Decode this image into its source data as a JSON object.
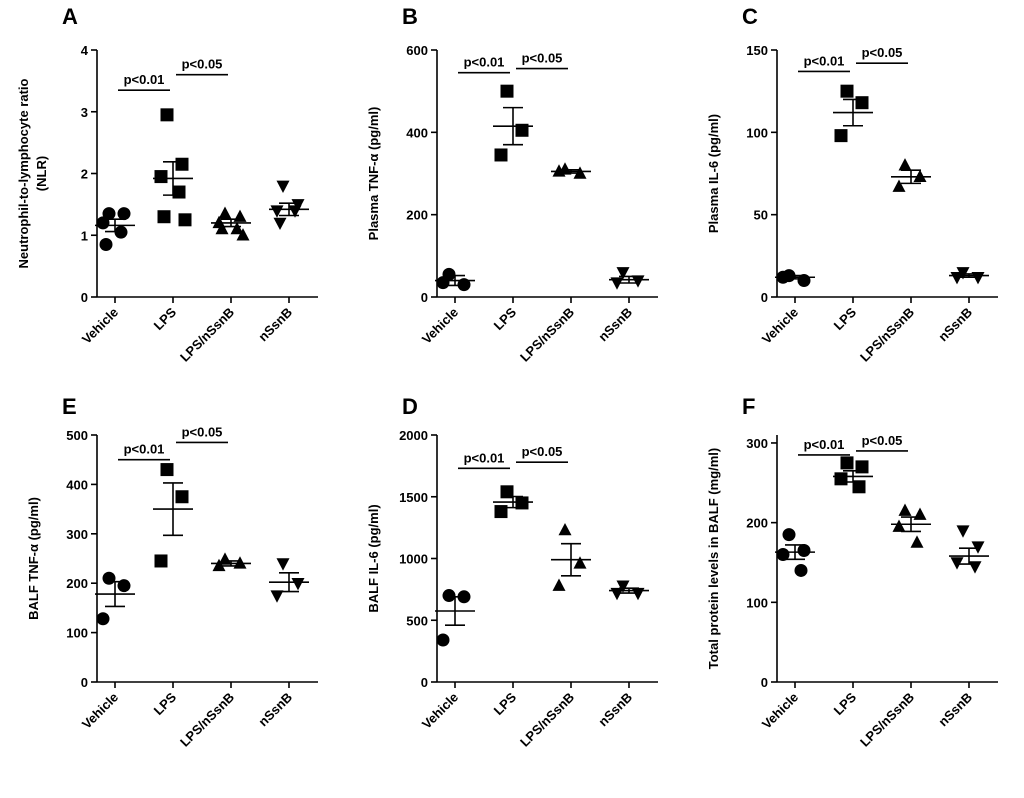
{
  "chart_data": [
    {
      "type": "dotplot",
      "panel": "A",
      "ylabel": [
        "Neutrophil-to-lymphocyte ratio",
        "(NLR)"
      ],
      "categories": [
        "Vehicle",
        "LPS",
        "LPS/nSsnB",
        "nSsnB"
      ],
      "markers": [
        "circle",
        "square",
        "triangle",
        "triangle-down"
      ],
      "color": "#000000",
      "points": [
        [
          1.35,
          1.35,
          1.2,
          1.05,
          0.85
        ],
        [
          2.95,
          2.15,
          1.95,
          1.7,
          1.3,
          1.25
        ],
        [
          1.35,
          1.3,
          1.2,
          1.1,
          1.1,
          1.0
        ],
        [
          1.8,
          1.5,
          1.4,
          1.4,
          1.2
        ]
      ],
      "means": [
        1.16,
        1.92,
        1.2,
        1.42
      ],
      "sem": [
        0.1,
        0.27,
        0.06,
        0.1
      ],
      "ylim": [
        0,
        4
      ],
      "yticks": [
        0,
        1,
        2,
        3,
        4
      ],
      "annotations": [
        {
          "text": "p<0.01",
          "from": "Vehicle",
          "to": "LPS",
          "y": 3.35
        },
        {
          "text": "p<0.05",
          "from": "LPS",
          "to": "LPS/nSsnB",
          "y": 3.6
        }
      ]
    },
    {
      "type": "dotplot",
      "panel": "B",
      "ylabel": "Plasma TNF-α (pg/ml)",
      "categories": [
        "Vehicle",
        "LPS",
        "LPS/nSsnB",
        "nSsnB"
      ],
      "markers": [
        "circle",
        "square",
        "triangle",
        "triangle-down"
      ],
      "color": "#000000",
      "points": [
        [
          55,
          30,
          35
        ],
        [
          500,
          405,
          345
        ],
        [
          310,
          300,
          305
        ],
        [
          60,
          40,
          35
        ]
      ],
      "means": [
        40,
        415,
        305,
        42
      ],
      "sem": [
        12,
        45,
        4,
        8
      ],
      "ylim": [
        0,
        600
      ],
      "yticks": [
        0,
        200,
        400,
        600
      ],
      "annotations": [
        {
          "text": "p<0.01",
          "from": "Vehicle",
          "to": "LPS",
          "y": 545
        },
        {
          "text": "p<0.05",
          "from": "LPS",
          "to": "LPS/nSsnB",
          "y": 555
        }
      ]
    },
    {
      "type": "dotplot",
      "panel": "C",
      "ylabel": "Plasma IL-6 (pg/ml)",
      "categories": [
        "Vehicle",
        "LPS",
        "LPS/nSsnB",
        "nSsnB"
      ],
      "markers": [
        "circle",
        "square",
        "triangle",
        "triangle-down"
      ],
      "color": "#000000",
      "points": [
        [
          13,
          10,
          12
        ],
        [
          125,
          118,
          98
        ],
        [
          80,
          73,
          67
        ],
        [
          15,
          12,
          12
        ]
      ],
      "means": [
        12,
        112,
        73,
        13
      ],
      "sem": [
        1,
        8,
        4,
        1
      ],
      "ylim": [
        0,
        150
      ],
      "yticks": [
        0,
        50,
        100,
        150
      ],
      "annotations": [
        {
          "text": "p<0.01",
          "from": "Vehicle",
          "to": "LPS",
          "y": 137
        },
        {
          "text": "p<0.05",
          "from": "LPS",
          "to": "LPS/nSsnB",
          "y": 142
        }
      ]
    },
    {
      "type": "dotplot",
      "panel": "E",
      "ylabel": "BALF TNF-α (pg/ml)",
      "categories": [
        "Vehicle",
        "LPS",
        "LPS/nSsnB",
        "nSsnB"
      ],
      "markers": [
        "circle",
        "square",
        "triangle",
        "triangle-down"
      ],
      "color": "#000000",
      "points": [
        [
          210,
          195,
          128
        ],
        [
          430,
          375,
          245
        ],
        [
          248,
          240,
          235
        ],
        [
          240,
          200,
          175
        ]
      ],
      "means": [
        178,
        350,
        240,
        202
      ],
      "sem": [
        25,
        53,
        5,
        19
      ],
      "ylim": [
        0,
        500
      ],
      "yticks": [
        0,
        100,
        200,
        300,
        400,
        500
      ],
      "annotations": [
        {
          "text": "p<0.01",
          "from": "Vehicle",
          "to": "LPS",
          "y": 450
        },
        {
          "text": "p<0.05",
          "from": "LPS",
          "to": "LPS/nSsnB",
          "y": 485
        }
      ]
    },
    {
      "type": "dotplot",
      "panel": "D",
      "ylabel": "BALF IL-6 (pg/ml)",
      "categories": [
        "Vehicle",
        "LPS",
        "LPS/nSsnB",
        "nSsnB"
      ],
      "markers": [
        "circle",
        "square",
        "triangle",
        "triangle-down"
      ],
      "color": "#000000",
      "points": [
        [
          700,
          690,
          340
        ],
        [
          1540,
          1450,
          1380
        ],
        [
          1230,
          960,
          780
        ],
        [
          780,
          720,
          720
        ]
      ],
      "means": [
        575,
        1457,
        990,
        740
      ],
      "sem": [
        115,
        45,
        130,
        20
      ],
      "ylim": [
        0,
        2000
      ],
      "yticks": [
        0,
        500,
        1000,
        1500,
        2000
      ],
      "annotations": [
        {
          "text": "p<0.01",
          "from": "Vehicle",
          "to": "LPS",
          "y": 1730
        },
        {
          "text": "p<0.05",
          "from": "LPS",
          "to": "LPS/nSsnB",
          "y": 1780
        }
      ]
    },
    {
      "type": "dotplot",
      "panel": "F",
      "ylabel": "Total protein levels in BALF (mg/ml)",
      "categories": [
        "Vehicle",
        "LPS",
        "LPS/nSsnB",
        "nSsnB"
      ],
      "markers": [
        "circle",
        "square",
        "triangle",
        "triangle-down"
      ],
      "color": "#000000",
      "points": [
        [
          185,
          165,
          160,
          140
        ],
        [
          275,
          270,
          255,
          245
        ],
        [
          215,
          210,
          195,
          175
        ],
        [
          190,
          170,
          150,
          145
        ]
      ],
      "means": [
        163,
        258,
        198,
        158
      ],
      "sem": [
        9,
        7,
        9,
        10
      ],
      "ylim": [
        0,
        310
      ],
      "yticks": [
        0,
        100,
        200,
        300
      ],
      "annotations": [
        {
          "text": "p<0.01",
          "from": "Vehicle",
          "to": "LPS",
          "y": 285
        },
        {
          "text": "p<0.05",
          "from": "LPS",
          "to": "LPS/nSsnB",
          "y": 290
        }
      ]
    }
  ]
}
